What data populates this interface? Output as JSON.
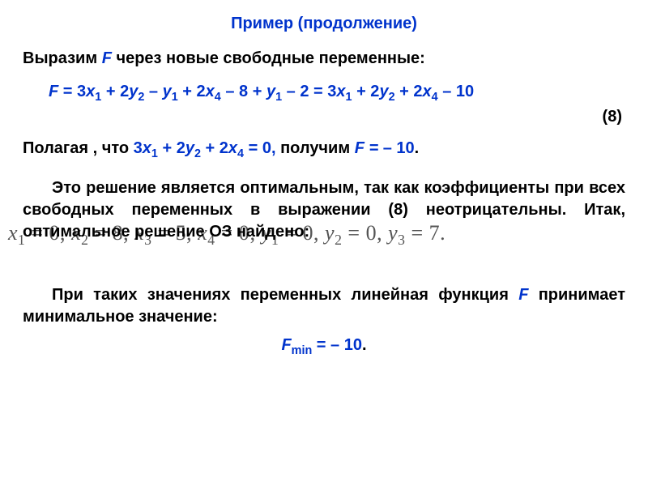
{
  "colors": {
    "title": "#0033cc",
    "accent": "#0033cc",
    "text": "#000000",
    "ghost": "#555555",
    "background": "#ffffff"
  },
  "typography": {
    "body_fontsize_pt": 15,
    "title_fontsize_pt": 15,
    "ghost_fontsize_pt": 20,
    "font_family_body": "Arial",
    "font_family_ghost": "Times New Roman"
  },
  "title": "Пример (продолжение)",
  "intro_prefix": "Выразим ",
  "intro_F": "F",
  "intro_suffix": " через новые свободные переменные:",
  "equation8": {
    "label": "(8)",
    "F": "F",
    "eq_sign": " = ",
    "t1": "3",
    "v1": "x",
    "s1": "1",
    "t2": " + 2",
    "v2": "y",
    "s2": "2",
    "t3": " – ",
    "v3": "y",
    "s3": "1",
    "t4": " + 2",
    "v4": "x",
    "s4": "4",
    "t5": " – 8 + ",
    "v5": "y",
    "s5": "1",
    "t6": " – 2 = 3",
    "v6": "x",
    "s6": "1",
    "t7": " + 2",
    "v7": "y",
    "s7": "2",
    "t8": " + 2",
    "v8": "x",
    "s8": "4",
    "t9": " – 10"
  },
  "assume": {
    "prefix": "Полагая , что ",
    "expr_t1": "3",
    "expr_v1": "x",
    "expr_s1": "1",
    "expr_t2": " + 2",
    "expr_v2": "y",
    "expr_s2": "2",
    "expr_t3": " + 2",
    "expr_v3": "x",
    "expr_s3": "4",
    "expr_t4": " = 0,",
    "mid": " получим ",
    "res_lhs": "F  = ",
    "res_rhs": "– 10",
    "period": "."
  },
  "optimal_para": "Это решение является оптимальным, так как коэффициенты при всех свободных переменных в выражении (8) неотрицательны. Итак, оптимальное решение ОЗ найдено:",
  "ghost_solution": {
    "items": [
      {
        "var": "x",
        "sub": "1",
        "val": "0",
        "sep": ","
      },
      {
        "var": "x",
        "sub": "2",
        "val": "8",
        "sep": ","
      },
      {
        "var": "x",
        "sub": "3",
        "val": "5",
        "sep": ","
      },
      {
        "var": "x",
        "sub": "4",
        "val": "0",
        "sep": ";"
      },
      {
        "var": "y",
        "sub": "1",
        "val": "0",
        "sep": ","
      },
      {
        "var": "y",
        "sub": "2",
        "val": "0",
        "sep": ","
      },
      {
        "var": "y",
        "sub": "3",
        "val": "7",
        "sep": "."
      }
    ],
    "item_gap": "   "
  },
  "conclusion_prefix": "При таких значениях переменных линейная функция ",
  "conclusion_F": "F",
  "conclusion_suffix": " принимает минимальное значение:",
  "fmin": {
    "lhs": "F",
    "sub": "min",
    "eq": " = ",
    "rhs": "– 10",
    "period": "."
  }
}
